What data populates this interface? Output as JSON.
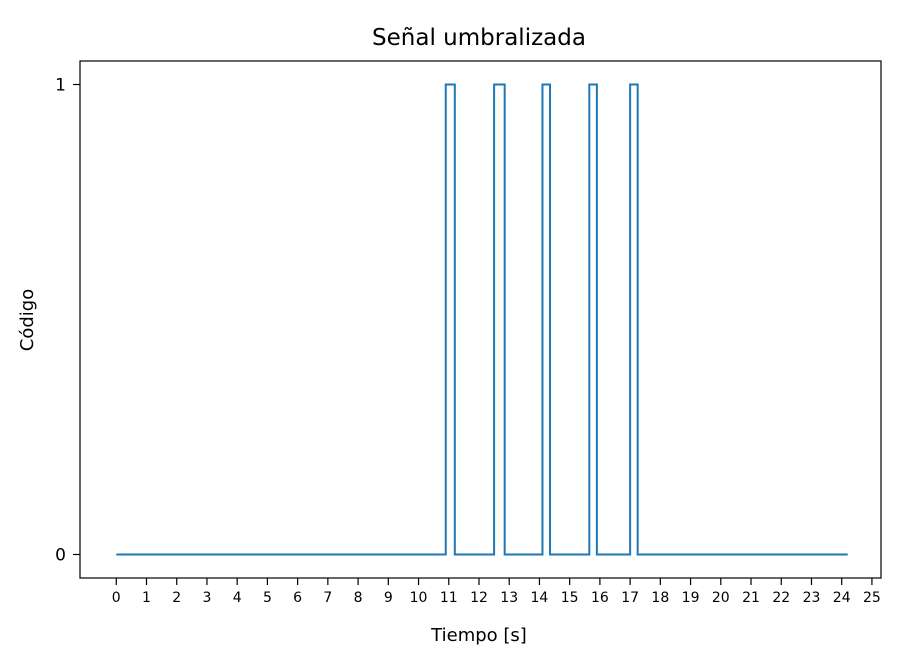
{
  "chart_data": {
    "type": "line",
    "title": "Señal umbralizada",
    "xlabel": "Tiempo [s]",
    "ylabel": "Código",
    "xlim": [
      -1.2,
      25.3
    ],
    "ylim": [
      -0.05,
      1.05
    ],
    "xticks": [
      "0",
      "1",
      "2",
      "3",
      "4",
      "5",
      "6",
      "7",
      "8",
      "9",
      "10",
      "11",
      "12",
      "13",
      "14",
      "15",
      "16",
      "17",
      "18",
      "19",
      "20",
      "21",
      "22",
      "23",
      "24",
      "25"
    ],
    "yticks": [
      "0",
      "1"
    ],
    "grid": false,
    "line_color": "#1f77b4",
    "series": [
      {
        "name": "Señal umbralizada",
        "step_points": [
          [
            0,
            0
          ],
          [
            10.9,
            0
          ],
          [
            10.9,
            1
          ],
          [
            11.2,
            1
          ],
          [
            11.2,
            0
          ],
          [
            12.5,
            0
          ],
          [
            12.5,
            1
          ],
          [
            12.85,
            1
          ],
          [
            12.85,
            0
          ],
          [
            14.1,
            0
          ],
          [
            14.1,
            1
          ],
          [
            14.35,
            1
          ],
          [
            14.35,
            0
          ],
          [
            15.65,
            0
          ],
          [
            15.65,
            1
          ],
          [
            15.9,
            1
          ],
          [
            15.9,
            0
          ],
          [
            17.0,
            0
          ],
          [
            17.0,
            1
          ],
          [
            17.25,
            1
          ],
          [
            17.25,
            0
          ],
          [
            24.2,
            0
          ]
        ]
      }
    ]
  }
}
